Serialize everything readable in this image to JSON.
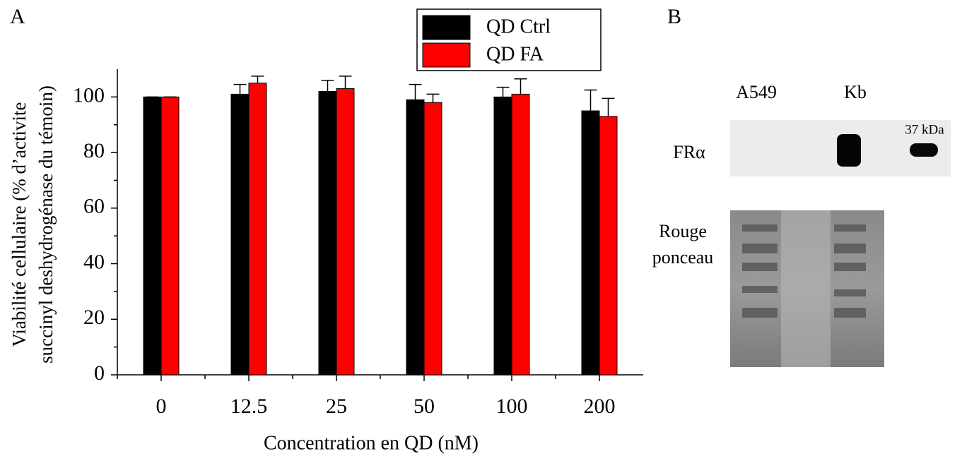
{
  "panel_labels": [
    "A",
    "B"
  ],
  "chart_data": {
    "type": "bar",
    "ylabel": [
      "Viabilité cellulaire (% d’activite",
      "succinyl deshydrogénase du témoin)"
    ],
    "xlabel": "Concentration en QD (nM)",
    "categories": [
      "0",
      "12.5",
      "25",
      "50",
      "100",
      "200"
    ],
    "series": [
      {
        "name": "QD Ctrl",
        "color": "#000000",
        "values": [
          100,
          101,
          102,
          99,
          100,
          95
        ],
        "errors": [
          0,
          3.5,
          4,
          5.5,
          3.5,
          7.5
        ]
      },
      {
        "name": "QD FA",
        "color": "#ff0000",
        "values": [
          100,
          105,
          103,
          98,
          101,
          93
        ],
        "errors": [
          0,
          2.5,
          4.5,
          3,
          5.5,
          6.5
        ]
      }
    ],
    "ylim": [
      0,
      110
    ],
    "yticks": [
      0,
      20,
      40,
      60,
      80,
      100
    ],
    "legend": "upper right"
  },
  "blot": {
    "lanes": [
      "A549",
      "Kb"
    ],
    "marker": "37 kDa",
    "rows": [
      "FRα",
      "Rouge",
      "ponceau"
    ]
  }
}
